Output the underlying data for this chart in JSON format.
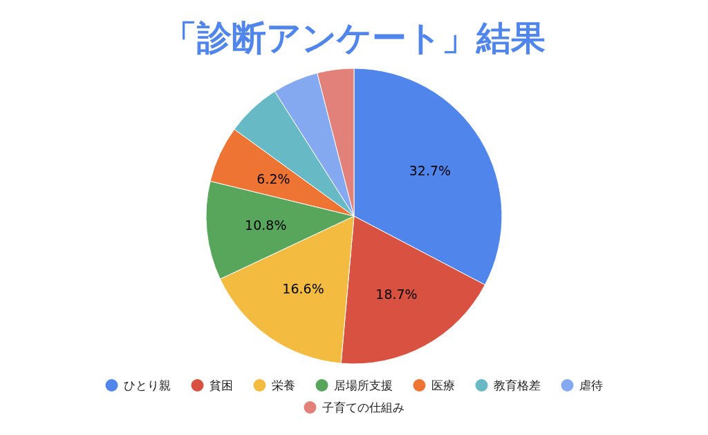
{
  "chart_data": {
    "type": "pie",
    "title": "「診断アンケート」結果",
    "categories": [
      "ひとり親",
      "貧困",
      "栄養",
      "居場所支援",
      "医療",
      "教育格差",
      "虐待",
      "子育ての仕組み"
    ],
    "values": [
      32.7,
      18.7,
      16.6,
      10.8,
      6.2,
      6.0,
      5.0,
      4.0
    ],
    "colors": [
      "#5086ec",
      "#d95140",
      "#f3bc41",
      "#58a55c",
      "#ed7433",
      "#67bac5",
      "#84a9f0",
      "#e2807a"
    ],
    "value_labels": [
      "32.7%",
      "18.7%",
      "16.6%",
      "10.8%",
      "6.2%",
      null,
      null,
      null
    ],
    "legend": "bottom"
  }
}
